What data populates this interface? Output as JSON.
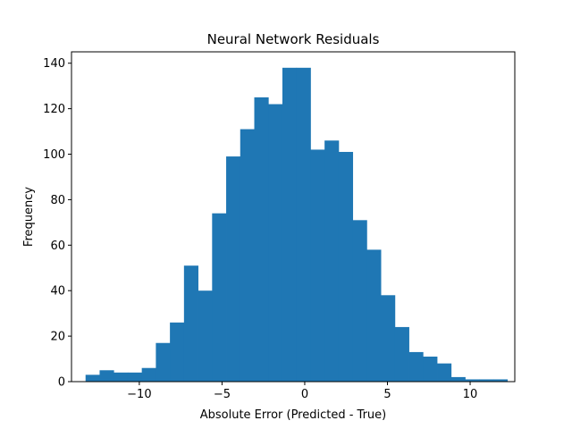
{
  "chart_data": {
    "type": "bar",
    "title": "Neural Network Residuals",
    "xlabel": "Absolute Error (Predicted - True)",
    "ylabel": "Frequency",
    "xlim": [
      -14.1,
      12.7
    ],
    "ylim": [
      0,
      145
    ],
    "xticks": [
      -10,
      -5,
      0,
      5,
      10
    ],
    "xtick_labels": [
      "−10",
      "−5",
      "0",
      "5",
      "10"
    ],
    "yticks": [
      0,
      20,
      40,
      60,
      80,
      100,
      120,
      140
    ],
    "ytick_labels": [
      "0",
      "20",
      "40",
      "60",
      "80",
      "100",
      "120",
      "140"
    ],
    "bin_edges": [
      -13.25,
      -12.4,
      -11.55,
      -10.7,
      -9.85,
      -9.0,
      -8.15,
      -7.3,
      -6.45,
      -5.6,
      -4.75,
      -3.9,
      -3.05,
      -2.2,
      -1.35,
      -0.5,
      0.35,
      1.2,
      2.05,
      2.9,
      3.75,
      4.6,
      5.45,
      6.3,
      7.15,
      8.0,
      8.85,
      9.7,
      10.55,
      11.4,
      12.25
    ],
    "values": [
      3,
      5,
      4,
      4,
      6,
      17,
      26,
      51,
      40,
      74,
      99,
      111,
      125,
      122,
      138,
      138,
      102,
      106,
      101,
      71,
      58,
      38,
      24,
      13,
      11,
      8,
      2,
      1,
      1,
      1
    ],
    "bar_color": "#1f77b4",
    "grid": false,
    "legend": "none"
  }
}
